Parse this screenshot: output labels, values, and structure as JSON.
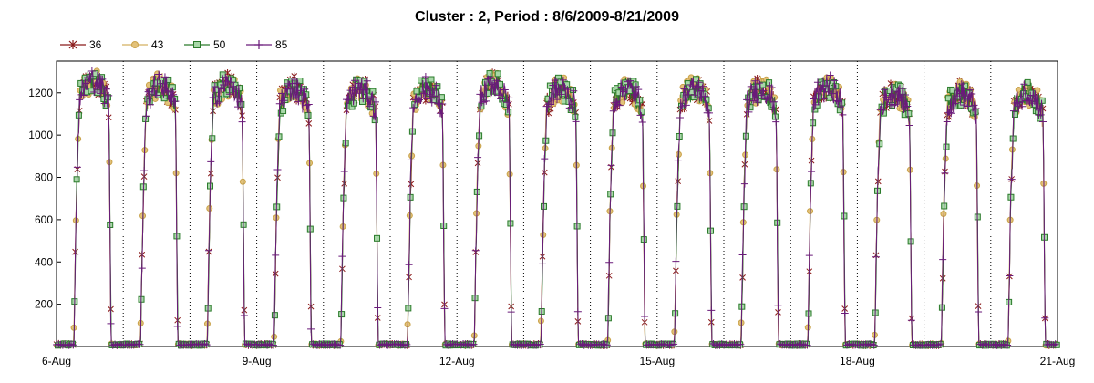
{
  "chart_data": {
    "type": "line",
    "title": "Cluster : 2, Period : 8/6/2009-8/21/2009",
    "xlabel": "",
    "ylabel": "",
    "x_range_days": [
      "8/6/2009",
      "8/21/2009"
    ],
    "x_ticks": [
      "6-Aug",
      "9-Aug",
      "12-Aug",
      "15-Aug",
      "18-Aug",
      "21-Aug"
    ],
    "y_ticks": [
      200,
      400,
      600,
      800,
      1000,
      1200
    ],
    "ylim": [
      0,
      1350
    ],
    "grid": "dotted vertical at day boundaries",
    "legend_position": "top-left",
    "daily_profile": {
      "note": "each day: near 0 at night, ramps to ~1200 midday",
      "x_hours": [
        0,
        5,
        6,
        7,
        8,
        9,
        10,
        11,
        12,
        13,
        14,
        15,
        16,
        17,
        18,
        19,
        24
      ],
      "peak_days": [
        {
          "date": "8/6",
          "peak": 1260
        },
        {
          "date": "8/7",
          "peak": 1240
        },
        {
          "date": "8/8",
          "peak": 1240
        },
        {
          "date": "8/9",
          "peak": 1220
        },
        {
          "date": "8/10",
          "peak": 1220
        },
        {
          "date": "8/11",
          "peak": 1220
        },
        {
          "date": "8/12",
          "peak": 1240
        },
        {
          "date": "8/13",
          "peak": 1220
        },
        {
          "date": "8/14",
          "peak": 1220
        },
        {
          "date": "8/15",
          "peak": 1220
        },
        {
          "date": "8/16",
          "peak": 1220
        },
        {
          "date": "8/17",
          "peak": 1230
        },
        {
          "date": "8/18",
          "peak": 1200
        },
        {
          "date": "8/19",
          "peak": 1200
        },
        {
          "date": "8/20",
          "peak": 1200
        }
      ]
    },
    "series": [
      {
        "name": "36",
        "color": "#8b1a1a",
        "marker": "asterisk"
      },
      {
        "name": "43",
        "color": "#d4b060",
        "marker": "circle"
      },
      {
        "name": "50",
        "color": "#2a7a2a",
        "marker": "square"
      },
      {
        "name": "85",
        "color": "#6a1a7a",
        "marker": "plus"
      }
    ]
  }
}
